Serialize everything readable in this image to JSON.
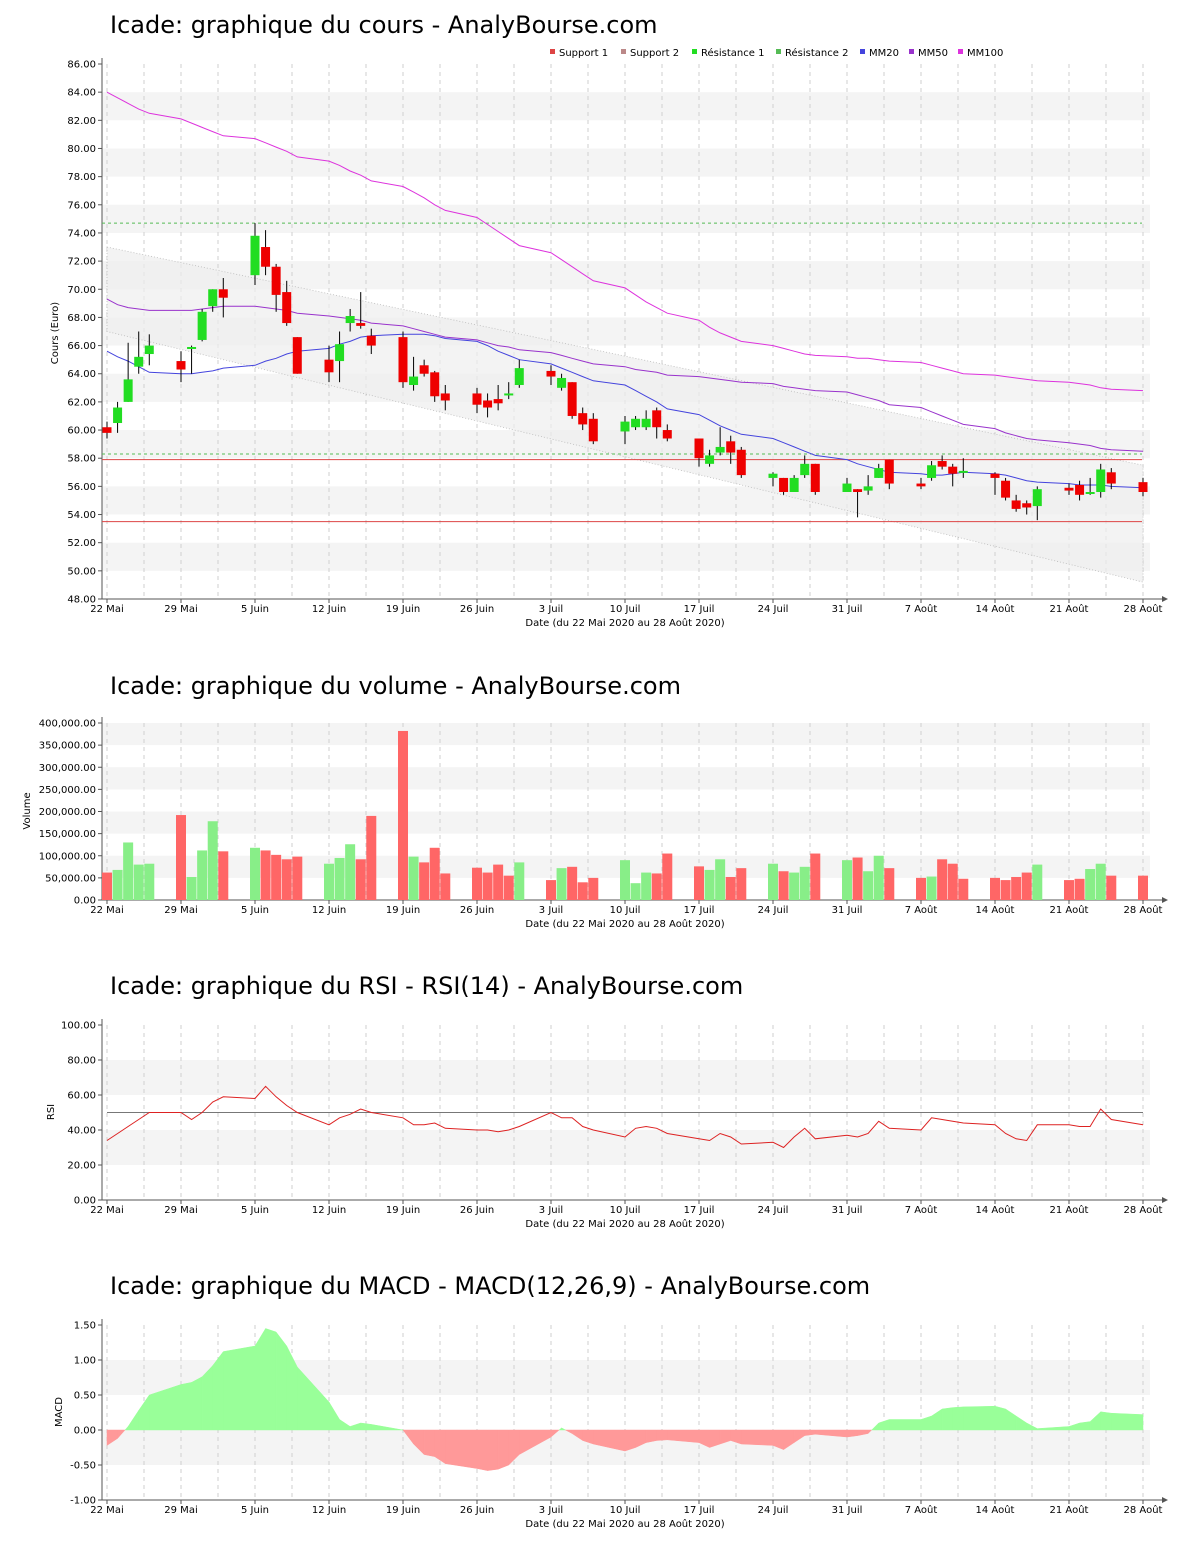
{
  "colors": {
    "up": "#22dd22",
    "down": "#ee0000",
    "support": "#dd4444",
    "support2": "#bb8888",
    "resistance": "#55bb55",
    "mm20": "#4444dd",
    "mm50": "#9933cc",
    "mm100": "#dd33dd",
    "vol_up": "#88ee88",
    "vol_down": "#ff6666",
    "rsi": "#dd2222",
    "macd_pos": "#99ff99",
    "macd_neg": "#ff9999"
  },
  "x_ticks": [
    "22 Mai",
    "29 Mai",
    "5 Juin",
    "12 Juin",
    "19 Juin",
    "26 Juin",
    "3 Juil",
    "10 Juil",
    "17 Juil",
    "24 Juil",
    "31 Juil",
    "7 Août",
    "14 Août",
    "21 Août",
    "28 Août"
  ],
  "x_label": "Date (du 22 Mai 2020 au 28 Août 2020)",
  "chart_data": [
    {
      "type": "candlestick",
      "title": "Icade: graphique du cours - AnalyBourse.com",
      "ylabel": "Cours (Euro)",
      "ylim": [
        48,
        86
      ],
      "yticks": [
        "48.00",
        "50.00",
        "52.00",
        "54.00",
        "56.00",
        "58.00",
        "60.00",
        "62.00",
        "64.00",
        "66.00",
        "68.00",
        "70.00",
        "72.00",
        "74.00",
        "76.00",
        "78.00",
        "80.00",
        "82.00",
        "84.00",
        "86.00"
      ],
      "legend": [
        "Support 1",
        "Support 2",
        "Résistance 1",
        "Résistance 2",
        "MM20",
        "MM50",
        "MM100"
      ],
      "legend_position": "top",
      "support_1": 53.5,
      "support_2": 57.9,
      "resistance_1": 58.3,
      "resistance_2": 74.7,
      "channel_upper": [
        73.0,
        57.5
      ],
      "channel_lower": [
        67.0,
        49.2
      ],
      "candles": [
        [
          60.2,
          59.8,
          60.6,
          59.4
        ],
        [
          60.5,
          61.6,
          62.0,
          59.8
        ],
        [
          62.0,
          63.6,
          66.2,
          62.0
        ],
        [
          64.5,
          65.2,
          67.0,
          64.0
        ],
        [
          65.4,
          66.0,
          66.8,
          64.6
        ],
        [
          64.9,
          64.3,
          65.6,
          63.4
        ],
        [
          65.8,
          65.9,
          66.0,
          64.0
        ],
        [
          66.4,
          68.4,
          68.6,
          66.3
        ],
        [
          68.8,
          70.0,
          70.0,
          68.4
        ],
        [
          70.0,
          69.4,
          70.8,
          68.0
        ],
        [
          71.0,
          73.8,
          74.7,
          70.3
        ],
        [
          73.0,
          71.6,
          74.2,
          71.0
        ],
        [
          71.6,
          69.6,
          71.8,
          68.4
        ],
        [
          69.8,
          67.6,
          70.6,
          67.4
        ],
        [
          66.6,
          64.0,
          66.6,
          64.0
        ],
        [
          65.0,
          64.1,
          66.0,
          63.4
        ],
        [
          64.9,
          66.1,
          67.0,
          63.4
        ],
        [
          67.6,
          68.1,
          68.6,
          67.0
        ],
        [
          67.6,
          67.4,
          69.8,
          67.2
        ],
        [
          66.7,
          66.0,
          67.2,
          65.4
        ],
        [
          66.6,
          63.4,
          67.0,
          63.0
        ],
        [
          63.2,
          63.8,
          65.2,
          62.8
        ],
        [
          64.6,
          64.0,
          65.0,
          63.8
        ],
        [
          64.1,
          62.4,
          64.2,
          62.0
        ],
        [
          62.6,
          62.1,
          63.2,
          61.4
        ],
        [
          62.6,
          61.8,
          63.0,
          61.2
        ],
        [
          62.1,
          61.6,
          62.6,
          60.9
        ],
        [
          62.2,
          61.9,
          63.2,
          61.4
        ],
        [
          62.6,
          62.6,
          63.4,
          62.2
        ],
        [
          63.2,
          64.4,
          65.0,
          63.0
        ],
        [
          64.2,
          63.8,
          64.6,
          63.2
        ],
        [
          63.0,
          63.7,
          64.0,
          62.8
        ],
        [
          63.4,
          61.0,
          63.4,
          60.8
        ],
        [
          61.2,
          60.4,
          61.6,
          60.0
        ],
        [
          60.8,
          59.2,
          61.2,
          59.0
        ],
        [
          59.9,
          60.6,
          61.0,
          59.0
        ],
        [
          60.2,
          60.8,
          61.0,
          60.0
        ],
        [
          60.2,
          60.8,
          61.4,
          60.0
        ],
        [
          61.4,
          60.2,
          61.6,
          59.4
        ],
        [
          60.0,
          59.4,
          60.4,
          59.2
        ],
        [
          59.4,
          58.0,
          59.4,
          57.4
        ],
        [
          57.6,
          58.2,
          58.6,
          57.4
        ],
        [
          58.4,
          58.8,
          60.2,
          58.2
        ],
        [
          59.2,
          58.4,
          59.6,
          57.6
        ],
        [
          58.6,
          56.8,
          58.8,
          56.6
        ],
        [
          56.6,
          56.9,
          57.0,
          56.0
        ],
        [
          56.6,
          55.6,
          56.6,
          55.4
        ],
        [
          55.6,
          56.6,
          56.8,
          55.6
        ],
        [
          56.8,
          57.6,
          58.2,
          56.6
        ],
        [
          57.6,
          55.6,
          57.6,
          55.4
        ],
        [
          55.6,
          56.2,
          56.6,
          55.6
        ],
        [
          55.8,
          55.6,
          55.8,
          53.8
        ],
        [
          55.7,
          56.0,
          56.8,
          55.4
        ],
        [
          56.6,
          57.3,
          57.6,
          56.6
        ],
        [
          57.9,
          56.2,
          57.9,
          55.8
        ],
        [
          56.2,
          56.0,
          56.6,
          55.8
        ],
        [
          56.6,
          57.5,
          57.8,
          56.4
        ],
        [
          57.8,
          57.4,
          58.2,
          57.2
        ],
        [
          57.4,
          56.9,
          57.6,
          56.0
        ],
        [
          57.0,
          57.1,
          58.0,
          56.6
        ],
        [
          56.9,
          56.6,
          57.0,
          55.4
        ],
        [
          56.4,
          55.2,
          56.6,
          55.0
        ],
        [
          55.0,
          54.4,
          55.4,
          54.2
        ],
        [
          54.8,
          54.5,
          55.0,
          54.0
        ],
        [
          54.6,
          55.8,
          56.0,
          53.6
        ],
        [
          55.9,
          55.7,
          56.2,
          55.4
        ],
        [
          56.1,
          55.4,
          56.4,
          55.0
        ],
        [
          55.5,
          55.6,
          56.6,
          55.4
        ],
        [
          55.6,
          57.2,
          57.6,
          55.2
        ],
        [
          57.0,
          56.2,
          57.3,
          55.8
        ],
        [
          56.3,
          55.6,
          56.6,
          55.3
        ]
      ],
      "mm20": [
        65.6,
        65.2,
        64.9,
        64.5,
        64.1,
        64.0,
        64.0,
        64.1,
        64.2,
        64.4,
        64.6,
        64.9,
        65.1,
        65.4,
        65.6,
        65.8,
        66.1,
        66.3,
        66.6,
        66.7,
        66.8,
        66.8,
        66.8,
        66.7,
        66.5,
        66.3,
        66.0,
        65.6,
        65.3,
        65.0,
        64.7,
        64.4,
        64.1,
        63.8,
        63.5,
        63.2,
        62.8,
        62.4,
        62.0,
        61.5,
        61.1,
        60.7,
        60.3,
        60.0,
        59.7,
        59.4,
        59.1,
        58.8,
        58.5,
        58.2,
        57.9,
        57.6,
        57.4,
        57.2,
        57.0,
        56.9,
        56.8,
        56.8,
        56.9,
        57.0,
        56.9,
        56.8,
        56.6,
        56.4,
        56.3,
        56.2,
        56.1,
        56.1,
        56.1,
        56.0,
        55.9
      ],
      "mm50": [
        69.3,
        68.9,
        68.7,
        68.6,
        68.5,
        68.5,
        68.5,
        68.6,
        68.7,
        68.8,
        68.8,
        68.7,
        68.6,
        68.5,
        68.3,
        68.1,
        68.0,
        67.9,
        67.8,
        67.6,
        67.4,
        67.2,
        67.0,
        66.8,
        66.6,
        66.4,
        66.2,
        66.0,
        65.9,
        65.7,
        65.5,
        65.3,
        65.1,
        64.9,
        64.7,
        64.5,
        64.3,
        64.2,
        64.1,
        63.9,
        63.8,
        63.7,
        63.6,
        63.5,
        63.4,
        63.3,
        63.1,
        63.0,
        62.9,
        62.8,
        62.7,
        62.5,
        62.3,
        62.1,
        61.8,
        61.6,
        61.3,
        61.0,
        60.7,
        60.4,
        60.1,
        59.8,
        59.6,
        59.4,
        59.3,
        59.1,
        59.0,
        58.9,
        58.7,
        58.6,
        58.5
      ],
      "mm100": [
        84.0,
        83.6,
        83.2,
        82.8,
        82.5,
        82.1,
        81.8,
        81.5,
        81.2,
        80.9,
        80.7,
        80.4,
        80.1,
        79.8,
        79.4,
        79.1,
        78.8,
        78.4,
        78.1,
        77.7,
        77.3,
        76.9,
        76.5,
        76.0,
        75.6,
        75.1,
        74.6,
        74.1,
        73.6,
        73.1,
        72.6,
        72.1,
        71.6,
        71.1,
        70.6,
        70.1,
        69.6,
        69.1,
        68.7,
        68.3,
        67.8,
        67.3,
        66.9,
        66.6,
        66.3,
        66.0,
        65.8,
        65.6,
        65.4,
        65.3,
        65.2,
        65.1,
        65.1,
        65.0,
        64.9,
        64.8,
        64.6,
        64.4,
        64.2,
        64.0,
        63.9,
        63.8,
        63.7,
        63.6,
        63.5,
        63.4,
        63.3,
        63.2,
        63.0,
        62.9,
        62.8
      ]
    },
    {
      "type": "bar",
      "title": "Icade: graphique du volume - AnalyBourse.com",
      "ylabel": "Volume",
      "ylim": [
        0,
        400000
      ],
      "yticks": [
        "0.00",
        "50,000.00",
        "100,000.00",
        "150,000.00",
        "200,000.00",
        "250,000.00",
        "300,000.00",
        "350,000.00",
        "400,000.00"
      ],
      "values": [
        62000,
        68000,
        130000,
        80000,
        82000,
        192000,
        52000,
        112000,
        178000,
        110000,
        118000,
        112000,
        102000,
        92000,
        98000,
        82000,
        95000,
        126000,
        92000,
        190000,
        382000,
        98000,
        85000,
        118000,
        60000,
        73000,
        62000,
        80000,
        55000,
        85000,
        45000,
        72000,
        75000,
        40000,
        50000,
        90000,
        38000,
        62000,
        60000,
        105000,
        76000,
        68000,
        92000,
        52000,
        72000,
        82000,
        65000,
        62000,
        75000,
        105000,
        90000,
        96000,
        65000,
        100000,
        72000,
        50000,
        53000,
        92000,
        82000,
        48000,
        50000,
        45000,
        52000,
        62000,
        80000,
        45000,
        48000,
        70000,
        82000,
        55000,
        55000
      ],
      "up": [
        false,
        true,
        true,
        true,
        true,
        false,
        true,
        true,
        true,
        false,
        true,
        false,
        false,
        false,
        false,
        true,
        true,
        true,
        false,
        false,
        false,
        true,
        false,
        false,
        false,
        false,
        false,
        false,
        false,
        true,
        false,
        true,
        false,
        false,
        false,
        true,
        true,
        true,
        false,
        false,
        false,
        true,
        true,
        false,
        false,
        true,
        false,
        true,
        true,
        false,
        true,
        false,
        true,
        true,
        false,
        false,
        true,
        false,
        false,
        false,
        false,
        false,
        false,
        false,
        true,
        false,
        false,
        true,
        true,
        false,
        false
      ]
    },
    {
      "type": "line",
      "title": "Icade: graphique du RSI - RSI(14) - AnalyBourse.com",
      "ylabel": "RSI",
      "ylim": [
        0,
        100
      ],
      "yticks": [
        "0.00",
        "20.00",
        "40.00",
        "60.00",
        "80.00",
        "100.00"
      ],
      "reference": 50,
      "values": [
        34,
        38,
        42,
        46,
        50,
        50,
        46,
        50,
        56,
        59,
        58,
        65,
        59,
        54,
        50,
        43,
        47,
        49,
        52,
        50,
        47,
        43,
        43,
        44,
        41,
        40,
        40,
        39,
        40,
        42,
        50,
        47,
        47,
        42,
        40,
        36,
        41,
        42,
        41,
        38,
        35,
        34,
        38,
        36,
        32,
        33,
        30,
        36,
        41,
        35,
        37,
        36,
        38,
        45,
        41,
        40,
        47,
        46,
        45,
        44,
        43,
        38,
        35,
        34,
        43,
        43,
        42,
        42,
        52,
        46,
        43
      ]
    },
    {
      "type": "area",
      "title": "Icade: graphique du MACD - MACD(12,26,9) - AnalyBourse.com",
      "ylabel": "MACD",
      "ylim": [
        -1,
        1.5
      ],
      "yticks": [
        "-1.00",
        "-0.50",
        "0.00",
        "0.50",
        "1.00",
        "1.50"
      ],
      "values": [
        -0.22,
        -0.12,
        0.05,
        0.28,
        0.5,
        0.65,
        0.68,
        0.76,
        0.92,
        1.12,
        1.2,
        1.45,
        1.4,
        1.2,
        0.9,
        0.4,
        0.15,
        0.05,
        0.1,
        0.08,
        0.0,
        -0.2,
        -0.35,
        -0.38,
        -0.48,
        -0.55,
        -0.58,
        -0.56,
        -0.5,
        -0.35,
        -0.1,
        0.03,
        -0.05,
        -0.15,
        -0.2,
        -0.3,
        -0.25,
        -0.18,
        -0.15,
        -0.14,
        -0.18,
        -0.25,
        -0.2,
        -0.15,
        -0.2,
        -0.22,
        -0.28,
        -0.18,
        -0.08,
        -0.06,
        -0.1,
        -0.08,
        -0.05,
        0.1,
        0.15,
        0.15,
        0.2,
        0.3,
        0.32,
        0.33,
        0.34,
        0.3,
        0.2,
        0.1,
        0.02,
        0.05,
        0.1,
        0.12,
        0.26,
        0.24,
        0.22
      ]
    }
  ]
}
